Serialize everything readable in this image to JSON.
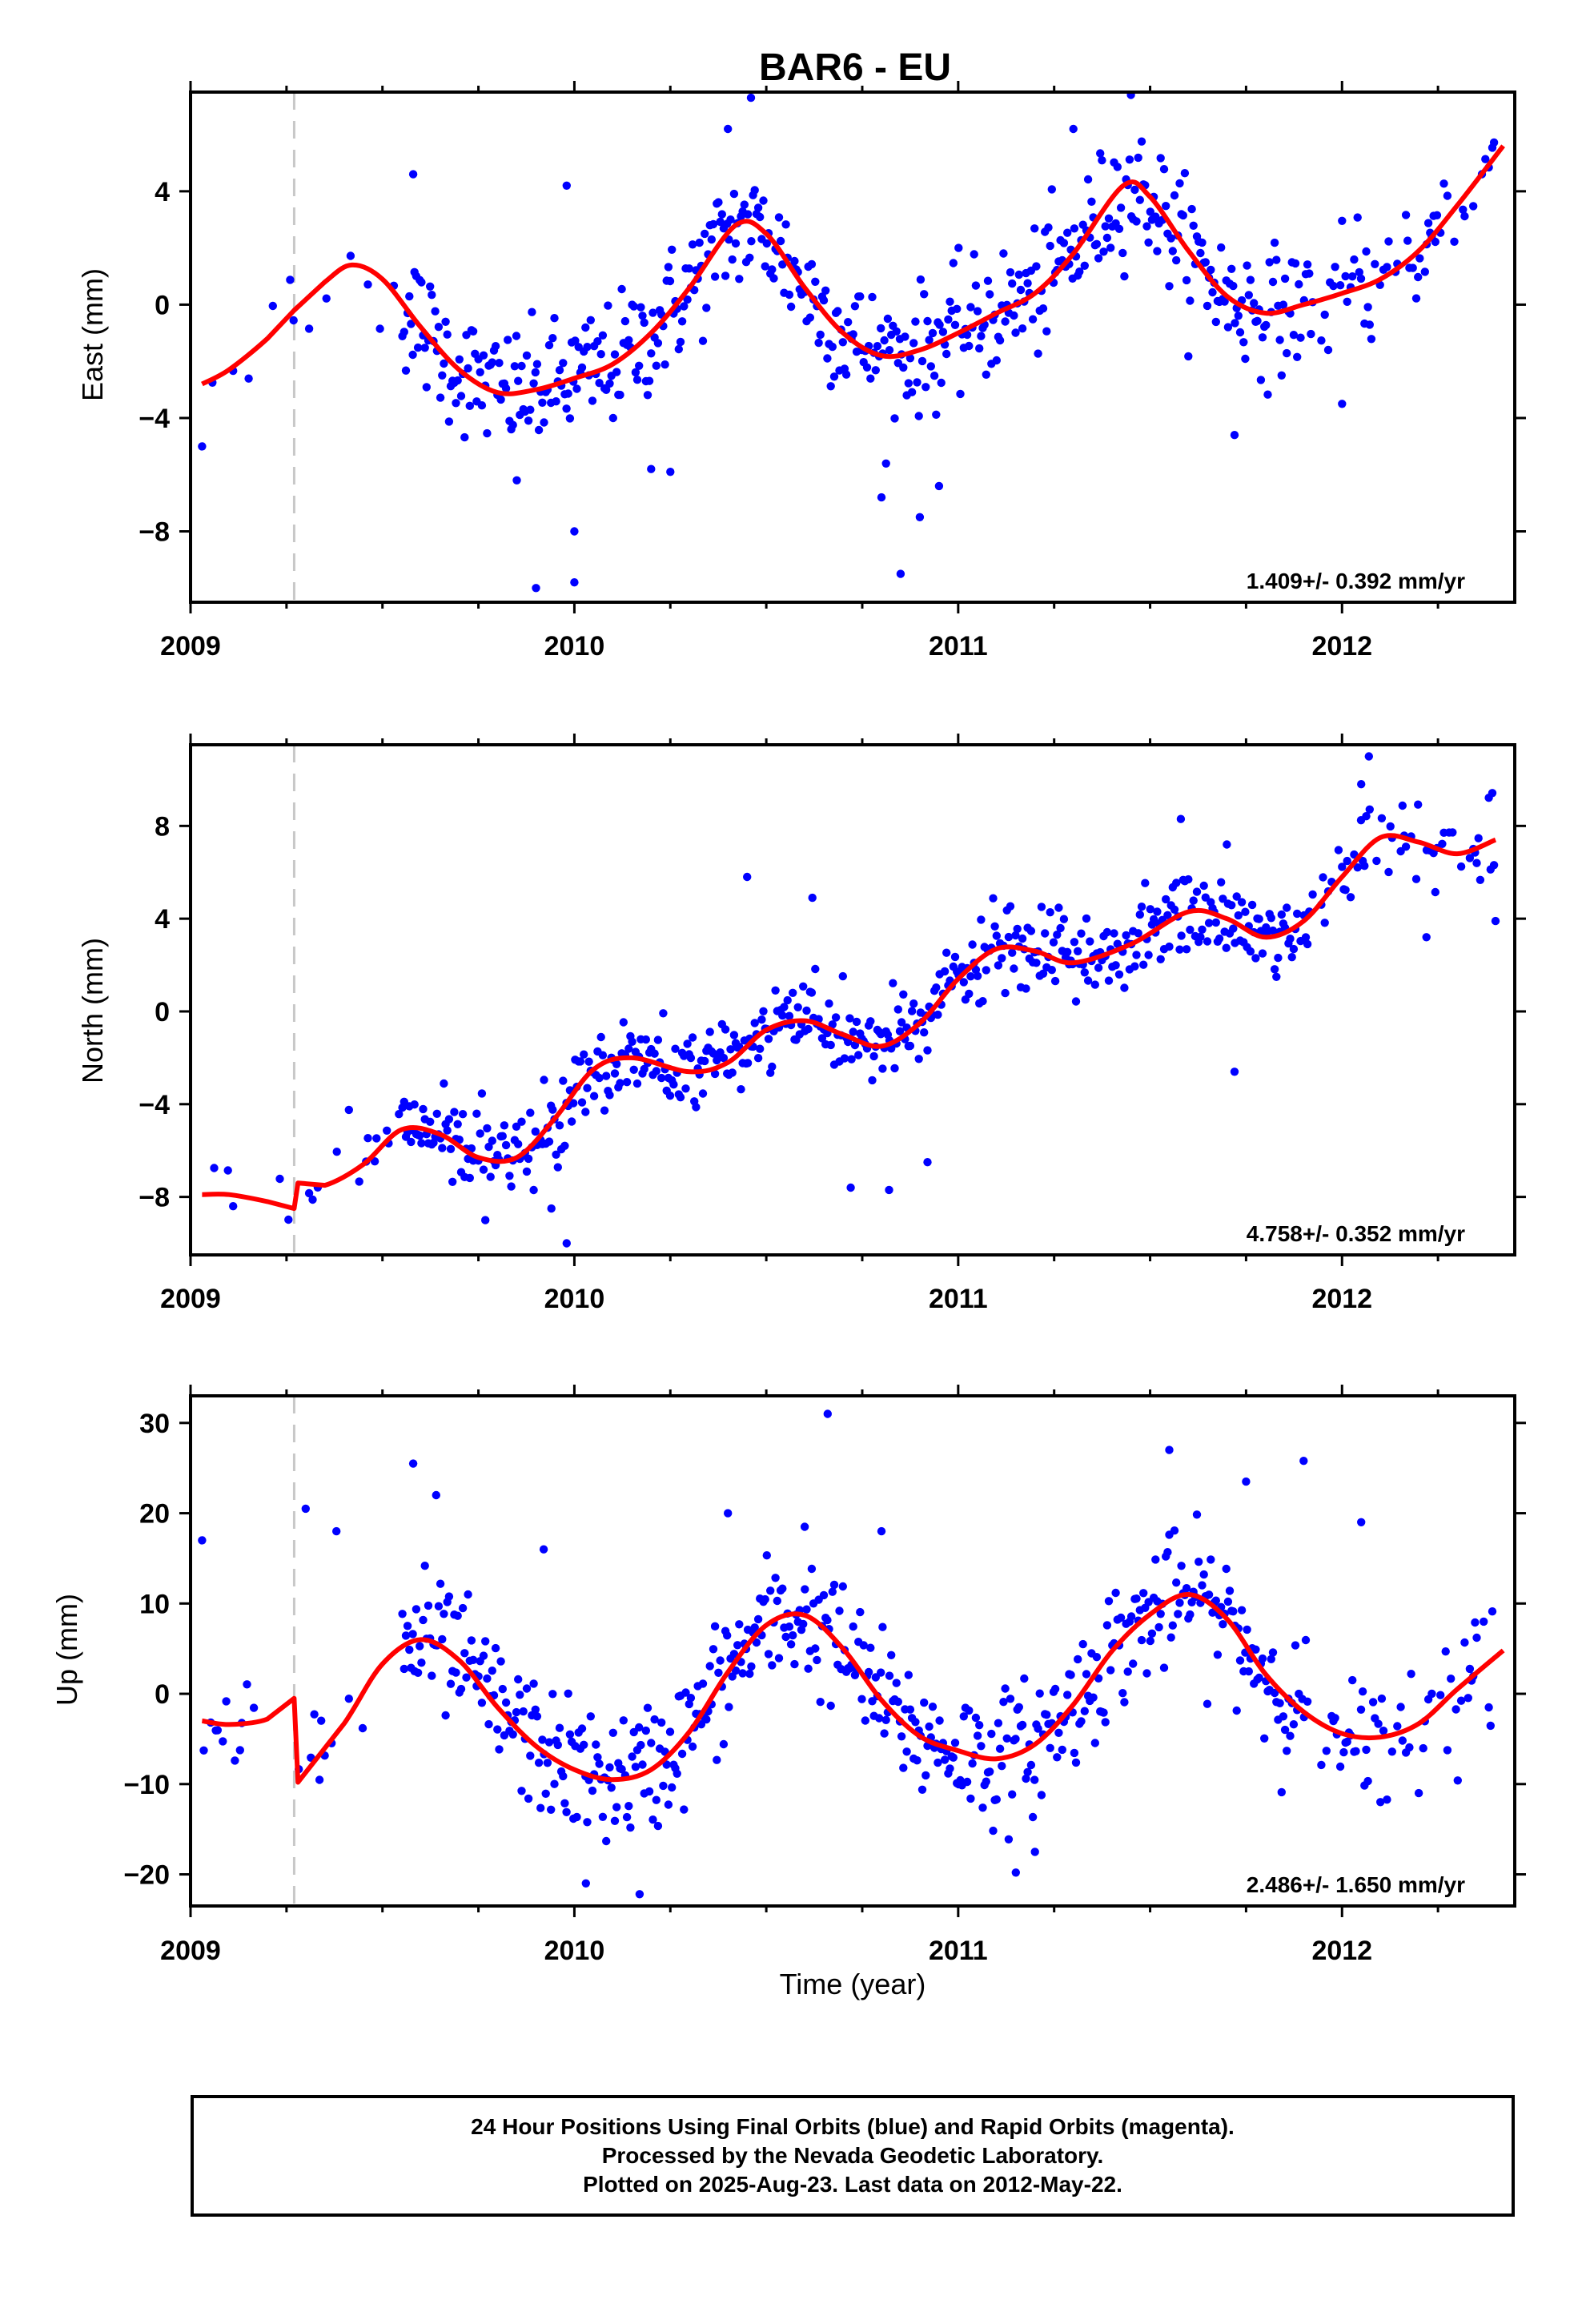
{
  "title": "BAR6 - EU",
  "xlabel": "Time (year)",
  "footer": {
    "line1": "24 Hour Positions Using Final Orbits (blue) and Rapid Orbits (magenta).",
    "line2": "Processed by the Nevada Geodetic Laboratory.",
    "line3": "Plotted on 2025-Aug-23. Last data on 2012-May-22."
  },
  "colors": {
    "points": "#0000ff",
    "model": "#ff0000",
    "offset_line": "#c8c8c8"
  },
  "chart_data": [
    {
      "type": "scatter",
      "component": "East",
      "ylabel": "East (mm)",
      "rate": "1.409+/- 0.392 mm/yr",
      "xlim": [
        2009.0,
        2012.45
      ],
      "ylim": [
        -10.5,
        7.5
      ],
      "yticks": [
        -8,
        -4,
        0,
        4
      ],
      "ytick_labels": [
        "−8",
        "−4",
        "0",
        "4"
      ],
      "xticks": [
        2009,
        2010,
        2011,
        2012
      ],
      "xtick_labels": [
        "2009",
        "2010",
        "2011",
        "2012"
      ],
      "offset_epoch": 2009.27,
      "model": {
        "x": [
          2009.03,
          2009.1,
          2009.2,
          2009.27,
          2009.35,
          2009.42,
          2009.5,
          2009.6,
          2009.7,
          2009.8,
          2009.9,
          2010.0,
          2010.1,
          2010.2,
          2010.3,
          2010.42,
          2010.5,
          2010.6,
          2010.7,
          2010.8,
          2010.9,
          2011.0,
          2011.1,
          2011.2,
          2011.3,
          2011.43,
          2011.5,
          2011.6,
          2011.7,
          2011.8,
          2011.9,
          2012.0,
          2012.1,
          2012.2,
          2012.3,
          2012.42
        ],
        "y": [
          -2.8,
          -2.3,
          -1.2,
          -0.2,
          0.8,
          1.4,
          0.9,
          -0.8,
          -2.3,
          -3.1,
          -3.0,
          -2.6,
          -2.1,
          -1.0,
          0.6,
          2.8,
          2.5,
          0.6,
          -1.0,
          -1.8,
          -1.6,
          -1.0,
          -0.3,
          0.4,
          1.8,
          4.2,
          3.8,
          1.9,
          0.3,
          -0.3,
          0.0,
          0.4,
          0.9,
          1.9,
          3.5,
          5.6
        ]
      },
      "noise": 1.1,
      "outliers": [
        [
          2009.03,
          -5.0
        ],
        [
          2009.9,
          -10.0
        ],
        [
          2010.0,
          -9.8
        ],
        [
          2009.85,
          -6.2
        ],
        [
          2010.0,
          -8.0
        ],
        [
          2010.2,
          -5.8
        ],
        [
          2010.25,
          -5.9
        ],
        [
          2010.4,
          6.2
        ],
        [
          2010.46,
          7.3
        ],
        [
          2010.8,
          -6.8
        ],
        [
          2010.85,
          -9.5
        ],
        [
          2010.9,
          -7.5
        ],
        [
          2010.95,
          -6.4
        ],
        [
          2011.3,
          6.2
        ],
        [
          2011.45,
          7.4
        ],
        [
          2011.72,
          -4.6
        ],
        [
          2012.0,
          -3.5
        ],
        [
          2009.58,
          4.6
        ],
        [
          2009.98,
          4.2
        ]
      ]
    },
    {
      "type": "scatter",
      "component": "North",
      "ylabel": "North (mm)",
      "rate": "4.758+/- 0.352 mm/yr",
      "xlim": [
        2009.0,
        2012.45
      ],
      "ylim": [
        -10.5,
        11.5
      ],
      "yticks": [
        -8,
        -4,
        0,
        4,
        8
      ],
      "ytick_labels": [
        "−8",
        "−4",
        "0",
        "4",
        "8"
      ],
      "xticks": [
        2009,
        2010,
        2011,
        2012
      ],
      "xtick_labels": [
        "2009",
        "2010",
        "2011",
        "2012"
      ],
      "offset_epoch": 2009.27,
      "model": {
        "x": [
          2009.03,
          2009.1,
          2009.2,
          2009.27,
          2009.28,
          2009.35,
          2009.45,
          2009.55,
          2009.65,
          2009.75,
          2009.85,
          2009.95,
          2010.05,
          2010.15,
          2010.3,
          2010.4,
          2010.5,
          2010.6,
          2010.7,
          2010.8,
          2010.9,
          2011.0,
          2011.1,
          2011.2,
          2011.3,
          2011.45,
          2011.6,
          2011.7,
          2011.8,
          2011.9,
          2012.0,
          2012.1,
          2012.2,
          2012.3,
          2012.4
        ],
        "y": [
          -7.9,
          -7.9,
          -8.2,
          -8.5,
          -7.4,
          -7.5,
          -6.6,
          -5.1,
          -5.3,
          -6.3,
          -6.3,
          -4.6,
          -2.5,
          -2.0,
          -2.6,
          -2.2,
          -0.8,
          -0.4,
          -1.0,
          -1.5,
          -0.5,
          1.4,
          2.7,
          2.6,
          2.1,
          2.9,
          4.3,
          4.0,
          3.2,
          3.9,
          5.8,
          7.5,
          7.3,
          6.8,
          7.4
        ]
      },
      "noise": 0.9,
      "outliers": [
        [
          2009.98,
          -10.0
        ],
        [
          2009.94,
          -8.5
        ],
        [
          2010.45,
          5.8
        ],
        [
          2010.62,
          4.9
        ],
        [
          2010.72,
          -7.6
        ],
        [
          2010.82,
          -7.7
        ],
        [
          2010.92,
          -6.5
        ],
        [
          2011.58,
          8.3
        ],
        [
          2011.7,
          7.2
        ],
        [
          2011.72,
          -2.6
        ],
        [
          2012.07,
          11.0
        ],
        [
          2012.05,
          9.8
        ],
        [
          2012.22,
          3.2
        ],
        [
          2012.4,
          3.9
        ]
      ]
    },
    {
      "type": "scatter",
      "component": "Up",
      "ylabel": "Up (mm)",
      "rate": "2.486+/- 1.650 mm/yr",
      "xlim": [
        2009.0,
        2012.45
      ],
      "ylim": [
        -23.5,
        33.0
      ],
      "yticks": [
        -20,
        -10,
        0,
        10,
        20,
        30
      ],
      "ytick_labels": [
        "−20",
        "−10",
        "0",
        "10",
        "20",
        "30"
      ],
      "xticks": [
        2009,
        2010,
        2011,
        2012
      ],
      "xtick_labels": [
        "2009",
        "2010",
        "2011",
        "2012"
      ],
      "offset_epoch": 2009.27,
      "model": {
        "x": [
          2009.03,
          2009.1,
          2009.2,
          2009.27,
          2009.28,
          2009.4,
          2009.5,
          2009.6,
          2009.7,
          2009.8,
          2009.9,
          2010.0,
          2010.1,
          2010.2,
          2010.3,
          2010.4,
          2010.5,
          2010.6,
          2010.7,
          2010.8,
          2010.9,
          2011.0,
          2011.1,
          2011.2,
          2011.3,
          2011.4,
          2011.5,
          2011.6,
          2011.7,
          2011.8,
          2011.9,
          2012.0,
          2012.1,
          2012.2,
          2012.3,
          2012.42
        ],
        "y": [
          -3.0,
          -3.4,
          -2.8,
          -0.5,
          -9.8,
          -3.3,
          3.3,
          6.0,
          3.7,
          -1.5,
          -5.8,
          -8.4,
          -9.5,
          -8.4,
          -4.2,
          2.4,
          7.6,
          8.7,
          5.0,
          -0.7,
          -4.7,
          -6.3,
          -7.2,
          -5.6,
          -1.2,
          4.7,
          8.8,
          11.0,
          8.3,
          2.2,
          -2.0,
          -4.4,
          -4.8,
          -3.3,
          0.5,
          4.8
        ]
      },
      "noise": 3.6,
      "outliers": [
        [
          2009.03,
          17.0
        ],
        [
          2009.3,
          20.5
        ],
        [
          2009.38,
          18.0
        ],
        [
          2009.58,
          25.5
        ],
        [
          2009.64,
          22.0
        ],
        [
          2009.92,
          16.0
        ],
        [
          2010.03,
          -21.0
        ],
        [
          2010.17,
          -22.2
        ],
        [
          2010.4,
          20.0
        ],
        [
          2010.6,
          18.5
        ],
        [
          2010.66,
          31.0
        ],
        [
          2010.8,
          18.0
        ],
        [
          2011.15,
          -19.8
        ],
        [
          2011.2,
          -17.5
        ],
        [
          2011.55,
          27.0
        ],
        [
          2011.75,
          23.5
        ],
        [
          2011.9,
          25.8
        ],
        [
          2012.05,
          19.0
        ],
        [
          2012.2,
          -11.0
        ],
        [
          2012.1,
          -12.0
        ]
      ]
    }
  ]
}
